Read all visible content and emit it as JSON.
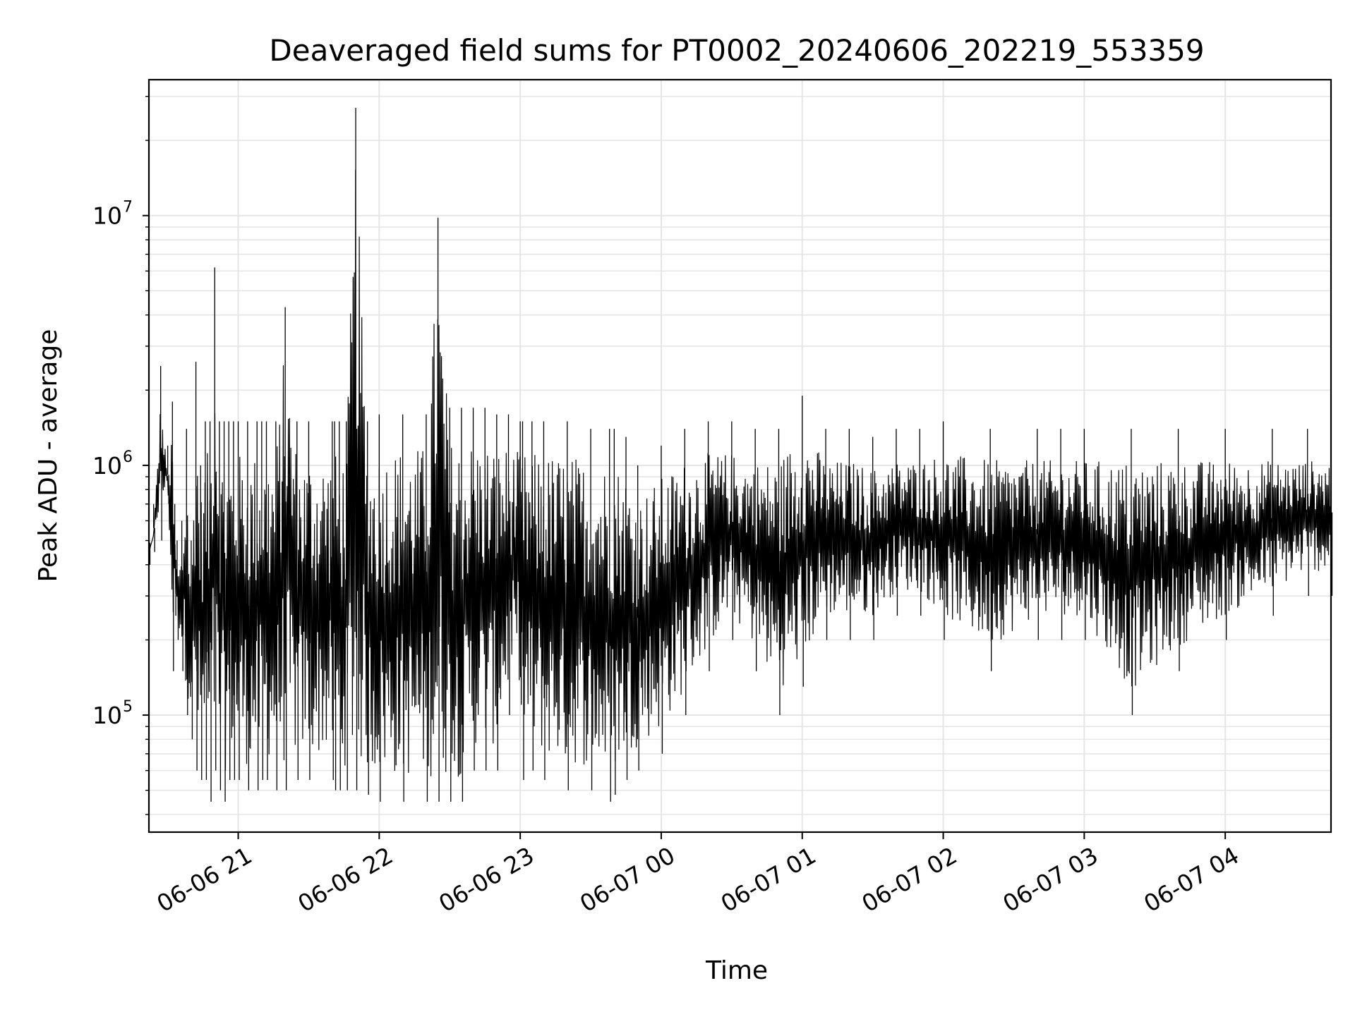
{
  "chart_data": {
    "type": "line",
    "title": "Deaveraged field sums for PT0002_20240606_202219_553359",
    "xlabel": "Time",
    "ylabel": "Peak ADU - average",
    "yscale": "log",
    "ylim": [
      34000,
      35000000
    ],
    "xlim": [
      "2024-06-06 20:22",
      "2024-06-07 04:45"
    ],
    "grid": true,
    "line_color": "#000000",
    "grid_color": "#e5e5e5",
    "x_ticks": [
      {
        "value": "2024-06-06 21:00",
        "label": "06-06 21"
      },
      {
        "value": "2024-06-06 22:00",
        "label": "06-06 22"
      },
      {
        "value": "2024-06-06 23:00",
        "label": "06-06 23"
      },
      {
        "value": "2024-06-07 00:00",
        "label": "06-07 00"
      },
      {
        "value": "2024-06-07 01:00",
        "label": "06-07 01"
      },
      {
        "value": "2024-06-07 02:00",
        "label": "06-07 02"
      },
      {
        "value": "2024-06-07 03:00",
        "label": "06-07 03"
      },
      {
        "value": "2024-06-07 04:00",
        "label": "06-07 04"
      }
    ],
    "y_ticks": [
      {
        "value": 100000,
        "base": "10",
        "exp": "5"
      },
      {
        "value": 1000000,
        "base": "10",
        "exp": "6"
      },
      {
        "value": 10000000,
        "base": "10",
        "exp": "7"
      }
    ],
    "series": [
      {
        "x": [
          "2024-06-06 20:22",
          "2024-06-06 20:24",
          "2024-06-06 20:27",
          "2024-06-06 20:30",
          "2024-06-06 20:32",
          "2024-06-06 20:33",
          "2024-06-06 20:34",
          "2024-06-06 20:36",
          "2024-06-06 20:38",
          "2024-06-06 20:40",
          "2024-06-06 20:42",
          "2024-06-06 20:44",
          "2024-06-06 20:46",
          "2024-06-06 20:48",
          "2024-06-06 20:50",
          "2024-06-06 20:52",
          "2024-06-06 20:54",
          "2024-06-06 20:56",
          "2024-06-06 20:58",
          "2024-06-06 21:00",
          "2024-06-06 21:04",
          "2024-06-06 21:08",
          "2024-06-06 21:10",
          "2024-06-06 21:12",
          "2024-06-06 21:16",
          "2024-06-06 21:20",
          "2024-06-06 21:25",
          "2024-06-06 21:30",
          "2024-06-06 21:40",
          "2024-06-06 21:41",
          "2024-06-06 21:43",
          "2024-06-06 21:46",
          "2024-06-06 21:50",
          "2024-06-06 21:55",
          "2024-06-06 22:00",
          "2024-06-06 22:10",
          "2024-06-06 22:20",
          "2024-06-06 22:25",
          "2024-06-06 22:30",
          "2024-06-06 22:35",
          "2024-06-06 22:40",
          "2024-06-06 22:45",
          "2024-06-06 22:50",
          "2024-06-06 22:55",
          "2024-06-06 23:00",
          "2024-06-06 23:01",
          "2024-06-06 23:05",
          "2024-06-06 23:10",
          "2024-06-06 23:20",
          "2024-06-06 23:30",
          "2024-06-06 23:38",
          "2024-06-06 23:40",
          "2024-06-06 23:45",
          "2024-06-06 23:50",
          "2024-06-07 00:00",
          "2024-06-07 00:10",
          "2024-06-07 00:20",
          "2024-06-07 00:30",
          "2024-06-07 00:40",
          "2024-06-07 00:50",
          "2024-06-07 01:00",
          "2024-06-07 01:10",
          "2024-06-07 01:20",
          "2024-06-07 01:30",
          "2024-06-07 01:40",
          "2024-06-07 01:50",
          "2024-06-07 02:00",
          "2024-06-07 02:20",
          "2024-06-07 02:40",
          "2024-06-07 02:50",
          "2024-06-07 03:00",
          "2024-06-07 03:20",
          "2024-06-07 03:40",
          "2024-06-07 04:00",
          "2024-06-07 04:20",
          "2024-06-07 04:35",
          "2024-06-07 04:45"
        ],
        "high": [
          600000,
          700000,
          2500000,
          1200000,
          1800000,
          700000,
          500000,
          600000,
          1400000,
          500000,
          2600000,
          1000000,
          1500000,
          1500000,
          6200000,
          1500000,
          1500000,
          1500000,
          1500000,
          1500000,
          1500000,
          1500000,
          1500000,
          1500000,
          1500000,
          4300000,
          1500000,
          1500000,
          1500000,
          1500000,
          1500000,
          1500000,
          27000000,
          1500000,
          1600000,
          1600000,
          1600000,
          9800000,
          1700000,
          1700000,
          1700000,
          1700000,
          1600000,
          1600000,
          1500000,
          1500000,
          1500000,
          1500000,
          1500000,
          1400000,
          1400000,
          1400000,
          1300000,
          1000000,
          1200000,
          1400000,
          1500000,
          1500000,
          1400000,
          1400000,
          1900000,
          1400000,
          1400000,
          1300000,
          1400000,
          1400000,
          1500000,
          1400000,
          1400000,
          1400000,
          1400000,
          1400000,
          1400000,
          1400000,
          1400000,
          1400000,
          1400000
        ],
        "low": [
          400000,
          450000,
          500000,
          700000,
          150000,
          250000,
          200000,
          150000,
          100000,
          80000,
          60000,
          55000,
          55000,
          45000,
          60000,
          50000,
          45000,
          55000,
          55000,
          55000,
          50000,
          50000,
          55000,
          55000,
          50000,
          50000,
          55000,
          55000,
          55000,
          50000,
          50000,
          50000,
          50000,
          48000,
          45000,
          45000,
          45000,
          45000,
          45000,
          45000,
          60000,
          60000,
          60000,
          100000,
          110000,
          55000,
          60000,
          55000,
          50000,
          50000,
          45000,
          48000,
          55000,
          60000,
          70000,
          100000,
          150000,
          200000,
          150000,
          100000,
          130000,
          200000,
          200000,
          200000,
          250000,
          250000,
          200000,
          150000,
          200000,
          200000,
          200000,
          100000,
          150000,
          200000,
          250000,
          300000,
          300000
        ]
      }
    ]
  }
}
